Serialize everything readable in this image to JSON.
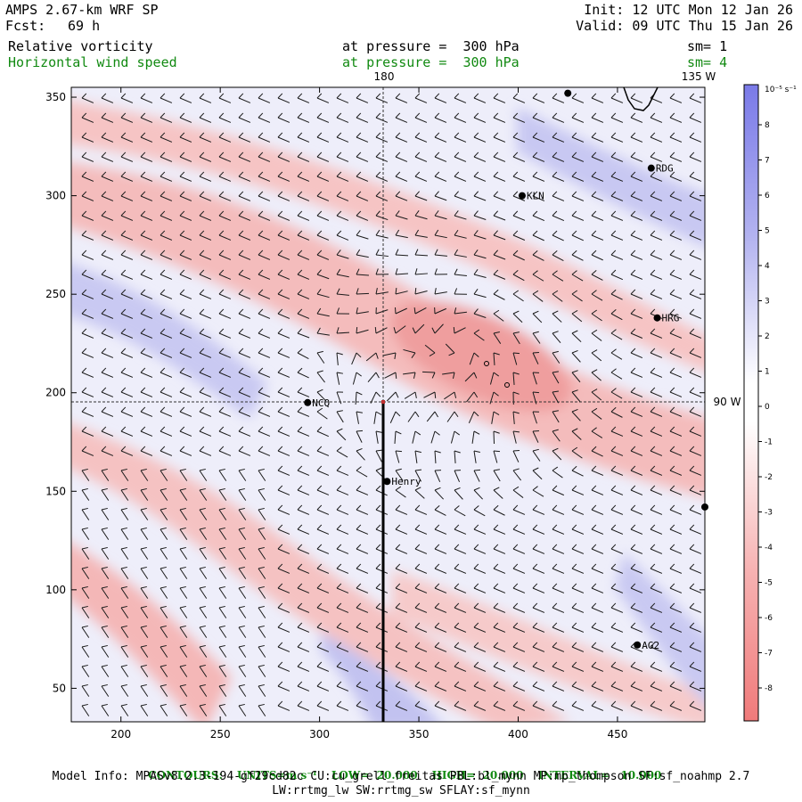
{
  "header": {
    "model": "AMPS 2.67-km WRF SP",
    "forecast_label": "Fcst:",
    "forecast_value": "69 h",
    "init": "Init: 12 UTC Mon 12 Jan 26",
    "valid": "Valid: 09 UTC Thu 15 Jan 26",
    "field1_name": "Relative vorticity",
    "field1_level": "at pressure =  300 hPa",
    "field1_sm": "sm= 1",
    "field2_name": "Horizontal wind speed",
    "field2_level": "at pressure =  300 hPa",
    "field2_sm": "sm= 4"
  },
  "map": {
    "x_ticks": [
      "200",
      "250",
      "300",
      "350",
      "400",
      "450"
    ],
    "y_ticks": [
      "350",
      "300",
      "250",
      "200",
      "150",
      "100",
      "50"
    ],
    "lon_labels": {
      "top_180": "180",
      "top_135w": "135 W",
      "right_90w": "90 W"
    },
    "stations": [
      {
        "name": "RDG",
        "x": 467,
        "y": 314
      },
      {
        "name": "KLN",
        "x": 402,
        "y": 300
      },
      {
        "name": "HRG",
        "x": 470,
        "y": 238
      },
      {
        "name": "NCQ",
        "x": 294,
        "y": 195
      },
      {
        "name": "Henry",
        "x": 334,
        "y": 155
      },
      {
        "name": "AG2",
        "x": 460,
        "y": 72
      }
    ],
    "extra_points": [
      {
        "x": 425,
        "y": 352
      },
      {
        "x": 494,
        "y": 142
      }
    ],
    "x_range": [
      175,
      494
    ],
    "y_range": [
      33,
      355
    ],
    "colors": {
      "negative": "#f08080",
      "positive": "#7070e6",
      "crosshair": "#333333"
    }
  },
  "colorbar": {
    "units": "10⁻⁵ s⁻¹",
    "labels": [
      "8",
      "7",
      "6",
      "5",
      "4",
      "3",
      "2",
      "1",
      "0",
      "-1",
      "-2",
      "-3",
      "-4",
      "-5",
      "-6",
      "-7",
      "-8"
    ]
  },
  "footer": {
    "contours_label": "CONTOURS:",
    "units": "UNITS=m s⁻¹",
    "low": "LOW=  20.000",
    "high": "HIGH=  20.000",
    "interval": "INTERVAL=   10.000",
    "model_info": "Model Info: MPASv8.2.3-194-gf29cd82c CU:cu_grell_freitas PBL:bl_mynn MP:mp_thompson SF:sf_noahmp 2.7",
    "model_info2": "LW:rrtmg_lw SW:rrtmg_sw SFLAY:sf_mynn"
  }
}
